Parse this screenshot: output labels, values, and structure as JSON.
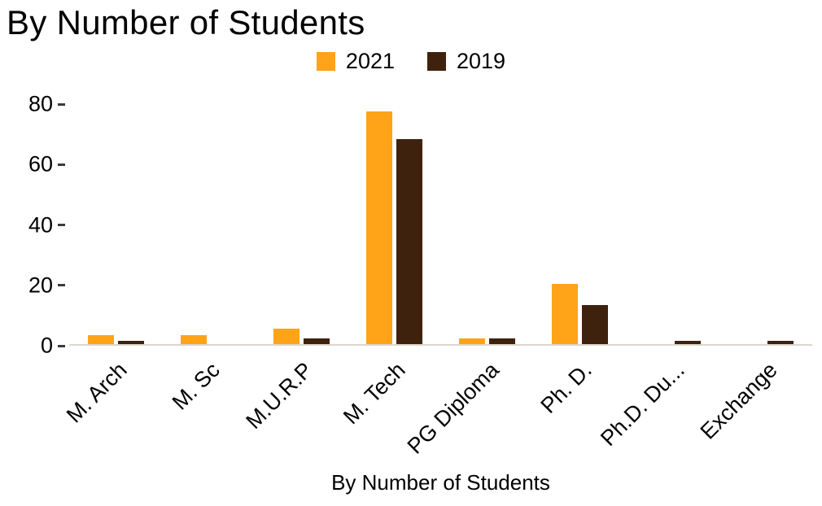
{
  "title": "By Number of Students",
  "colors": {
    "series_2021": "#FFA318",
    "series_2019": "#3F220E",
    "axis_line": "#dcd6cc",
    "text": "#000000",
    "background": "#ffffff"
  },
  "chart_data": {
    "type": "bar",
    "title": "By Number of Students",
    "xlabel": "By Number of Students",
    "ylabel": "",
    "categories": [
      "M. Arch",
      "M. Sc",
      "M.U.R.P",
      "M. Tech",
      "PG Diploma",
      "Ph. D.",
      "Ph.D. Du...",
      "Exchange"
    ],
    "series": [
      {
        "name": "2021",
        "color": "#FFA318",
        "values": [
          3,
          3,
          5,
          77,
          2,
          20,
          0,
          0
        ]
      },
      {
        "name": "2019",
        "color": "#3F220E",
        "values": [
          1,
          0,
          2,
          68,
          2,
          13,
          1,
          1
        ]
      }
    ],
    "ylim": [
      0,
      80
    ],
    "yticks": [
      0,
      20,
      40,
      60,
      80
    ],
    "grid": false,
    "legend_position": "top"
  }
}
